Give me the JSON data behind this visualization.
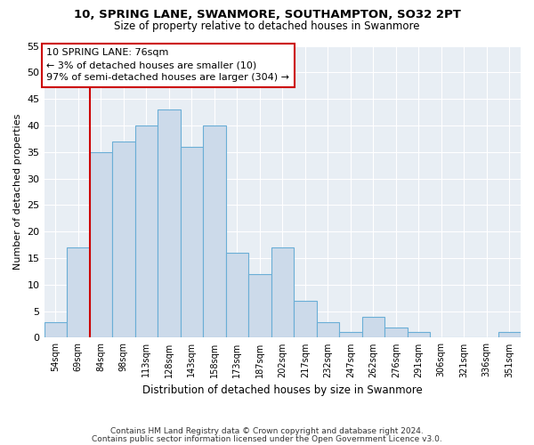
{
  "title_line1": "10, SPRING LANE, SWANMORE, SOUTHAMPTON, SO32 2PT",
  "title_line2": "Size of property relative to detached houses in Swanmore",
  "xlabel": "Distribution of detached houses by size in Swanmore",
  "ylabel": "Number of detached properties",
  "categories": [
    "54sqm",
    "69sqm",
    "84sqm",
    "98sqm",
    "113sqm",
    "128sqm",
    "143sqm",
    "158sqm",
    "173sqm",
    "187sqm",
    "202sqm",
    "217sqm",
    "232sqm",
    "247sqm",
    "262sqm",
    "276sqm",
    "291sqm",
    "306sqm",
    "321sqm",
    "336sqm",
    "351sqm"
  ],
  "values": [
    3,
    17,
    35,
    37,
    40,
    43,
    36,
    40,
    16,
    12,
    17,
    7,
    3,
    1,
    4,
    2,
    1,
    0,
    0,
    0,
    1
  ],
  "bar_color": "#ccdaea",
  "bar_edge_color": "#6aaed6",
  "annotation_title": "10 SPRING LANE: 76sqm",
  "annotation_line1": "← 3% of detached houses are smaller (10)",
  "annotation_line2": "97% of semi-detached houses are larger (304) →",
  "annotation_box_color": "#ffffff",
  "annotation_box_edge": "#cc0000",
  "property_line_color": "#cc0000",
  "ylim": [
    0,
    55
  ],
  "plot_bg_color": "#e8eef4",
  "footnote1": "Contains HM Land Registry data © Crown copyright and database right 2024.",
  "footnote2": "Contains public sector information licensed under the Open Government Licence v3.0."
}
